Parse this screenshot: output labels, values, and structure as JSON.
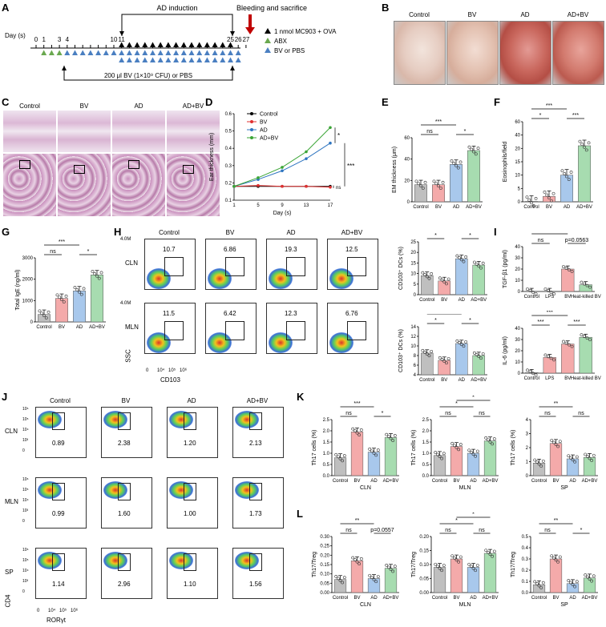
{
  "panels": {
    "a": "A",
    "b": "B",
    "c": "C",
    "d": "D",
    "e": "E",
    "f": "F",
    "g": "G",
    "h": "H",
    "i": "I",
    "j": "J",
    "k": "K",
    "l": "L"
  },
  "timeline": {
    "axis_label": "Day (s)",
    "days": [
      "0",
      "1",
      "3",
      "4",
      "10",
      "11",
      "25",
      "26",
      "27"
    ],
    "ad_induction": "AD induction",
    "bleeding": "Bleeding and sacrifice",
    "legend_mc903": "1 nmol MC903 + OVA",
    "legend_abx": "ABX",
    "legend_bv": "BV or PBS",
    "bv_dose": "200 μl BV (1×10⁹ CFU) or PBS",
    "colors": {
      "abx": "#6aa84f",
      "bv": "#4a7fc1",
      "mc903": "#000000",
      "arrow": "#c00000"
    }
  },
  "groups": [
    "Control",
    "BV",
    "AD",
    "AD+BV"
  ],
  "group_colors": {
    "Control": "#bfbfbf",
    "BV": "#f4aaaa",
    "AD": "#a8c8ec",
    "AD+BV": "#a7dcb0"
  },
  "panelD": {
    "ylabel": "Ear thickness (mm)",
    "xlabel": "Day (s)",
    "sig1": "*",
    "sig2": "***",
    "sig3": "ns",
    "chart_data": {
      "type": "line",
      "x": [
        1,
        5,
        9,
        13,
        17
      ],
      "ylim": [
        0.1,
        0.6
      ],
      "yticks": [
        "0.1",
        "0.2",
        "0.3",
        "0.4",
        "0.5",
        "0.6"
      ],
      "series": [
        {
          "name": "Control",
          "values": [
            0.18,
            0.18,
            0.18,
            0.18,
            0.18
          ],
          "color": "#000000"
        },
        {
          "name": "BV",
          "values": [
            0.18,
            0.185,
            0.18,
            0.18,
            0.175
          ],
          "color": "#e03030"
        },
        {
          "name": "AD",
          "values": [
            0.18,
            0.22,
            0.27,
            0.34,
            0.43
          ],
          "color": "#2e75c0"
        },
        {
          "name": "AD+BV",
          "values": [
            0.18,
            0.23,
            0.29,
            0.38,
            0.52
          ],
          "color": "#3aa535"
        }
      ]
    }
  },
  "panelE": {
    "ylabel": "EM thickness (μm)",
    "yticks": [
      "0",
      "20",
      "40",
      "60"
    ],
    "ylim": [
      0,
      60
    ],
    "values": [
      16,
      16,
      35,
      48
    ],
    "sig": [
      "ns",
      "***",
      "*"
    ]
  },
  "panelF": {
    "ylabel": "Eosinophils/field",
    "yticks": [
      "0",
      "5",
      "10",
      "15",
      "20",
      "40",
      "60"
    ],
    "values": [
      0.3,
      4,
      20,
      42
    ],
    "sig": [
      "*",
      "***",
      "***"
    ]
  },
  "panelG": {
    "ylabel": "Total IgE (ng/ml)",
    "yticks": [
      "0",
      "1000",
      "2000",
      "3000"
    ],
    "ylim": [
      0,
      3000
    ],
    "values": [
      350,
      1100,
      1450,
      2200
    ],
    "sig": [
      "ns",
      "***",
      "*"
    ]
  },
  "panelH": {
    "rows": [
      "CLN",
      "MLN"
    ],
    "cln_vals": [
      "10.7",
      "6.86",
      "19.3",
      "12.5"
    ],
    "mln_vals": [
      "11.5",
      "6.42",
      "12.3",
      "6.76"
    ],
    "ylab": "SSC",
    "xlab": "CD103",
    "ticks_x": [
      "0",
      "10⁴",
      "10⁵",
      "10⁶"
    ],
    "ticks_y": [
      "4.0M",
      "3.0M",
      "2.0M",
      "1.0M",
      "0"
    ],
    "bar1": {
      "ylabel": "CD103⁺ DCs (%)",
      "yticks": [
        "0",
        "5",
        "10",
        "15",
        "20",
        "25"
      ],
      "ylim": [
        0,
        25
      ],
      "values": [
        9,
        6.5,
        17,
        14
      ],
      "sig": [
        "*",
        "***",
        "*"
      ]
    },
    "bar2": {
      "ylabel": "CD103⁺ DCs (%)",
      "yticks": [
        "4",
        "6",
        "8",
        "10",
        "12",
        "14"
      ],
      "ylim": [
        4,
        14
      ],
      "values": [
        8.5,
        7,
        10.5,
        8
      ],
      "sig": [
        "*",
        "ns",
        "*"
      ]
    }
  },
  "panelI": {
    "groups": [
      "Control",
      "LPS",
      "BV",
      "Heat-killed BV"
    ],
    "colors": [
      "#bfbfbf",
      "#f4aaaa",
      "#f4aaaa",
      "#a7dcb0"
    ],
    "bar1": {
      "ylabel": "TGF-β1 (pg/ml)",
      "yticks": [
        "0",
        "10",
        "20",
        "30",
        "40"
      ],
      "ylim": [
        0,
        40
      ],
      "values": [
        0,
        0,
        20,
        6
      ],
      "sig": [
        "ns",
        "**",
        "p=0.0563",
        "ns"
      ]
    },
    "bar2": {
      "ylabel": "IL-6 (pg/ml)",
      "yticks": [
        "0",
        "10",
        "20",
        "30",
        "40"
      ],
      "ylim": [
        0,
        40
      ],
      "values": [
        0.5,
        14,
        26,
        32
      ],
      "sig": [
        "***",
        "***",
        "***",
        "***"
      ]
    }
  },
  "panelJ": {
    "rows": [
      "CLN",
      "MLN",
      "SP"
    ],
    "vals": [
      [
        "0.89",
        "2.38",
        "1.20",
        "2.13"
      ],
      [
        "0.99",
        "1.60",
        "1.00",
        "1.73"
      ],
      [
        "1.14",
        "2.96",
        "1.10",
        "1.56"
      ]
    ],
    "ylab": "CD4",
    "xlab": "RORγt",
    "ticks_x": [
      "0",
      "10⁴",
      "10⁵",
      "10⁶"
    ],
    "ticks_y": [
      "10⁶",
      "10⁵",
      "10⁴",
      "10³",
      "0"
    ]
  },
  "panelK": {
    "ylabel": "Th17 cells (%)",
    "charts": [
      {
        "xlab": "CLN",
        "yticks": [
          "0.0",
          "0.5",
          "1.0",
          "1.5",
          "2.0",
          "2.5"
        ],
        "ylim": [
          0,
          2.5
        ],
        "values": [
          0.8,
          1.95,
          1.05,
          1.7
        ],
        "sig": [
          "ns",
          "***",
          "*"
        ]
      },
      {
        "xlab": "MLN",
        "yticks": [
          "0.0",
          "0.5",
          "1.0",
          "1.5",
          "2.0",
          "2.5"
        ],
        "ylim": [
          0,
          2.5
        ],
        "values": [
          0.9,
          1.3,
          1.0,
          1.55
        ],
        "sig": [
          "ns",
          "*",
          "ns",
          "*"
        ]
      },
      {
        "xlab": "SP",
        "yticks": [
          "0",
          "1",
          "2",
          "3",
          "4"
        ],
        "ylim": [
          0,
          4
        ],
        "values": [
          0.9,
          2.3,
          1.2,
          1.3
        ],
        "sig": [
          "ns",
          "**",
          "ns"
        ]
      }
    ]
  },
  "panelL": {
    "ylabel": "Th17/Treg",
    "charts": [
      {
        "xlab": "CLN",
        "yticks": [
          "0.00",
          "0.05",
          "0.10",
          "0.15",
          "0.20",
          "0.25",
          "0.30"
        ],
        "ylim": [
          0,
          0.3
        ],
        "values": [
          0.07,
          0.17,
          0.075,
          0.13
        ],
        "sig": [
          "ns",
          "**",
          "p=0.0557"
        ]
      },
      {
        "xlab": "MLN",
        "yticks": [
          "0.00",
          "0.05",
          "0.10",
          "0.15",
          "0.20"
        ],
        "ylim": [
          0,
          0.2
        ],
        "values": [
          0.09,
          0.12,
          0.09,
          0.14
        ],
        "sig": [
          "ns",
          "*",
          "ns",
          "*"
        ]
      },
      {
        "xlab": "SP",
        "yticks": [
          "0.0",
          "0.1",
          "0.2",
          "0.3",
          "0.4",
          "0.5"
        ],
        "ylim": [
          0,
          0.5
        ],
        "values": [
          0.07,
          0.3,
          0.08,
          0.13
        ],
        "sig": [
          "ns",
          "**",
          "*"
        ]
      }
    ]
  }
}
